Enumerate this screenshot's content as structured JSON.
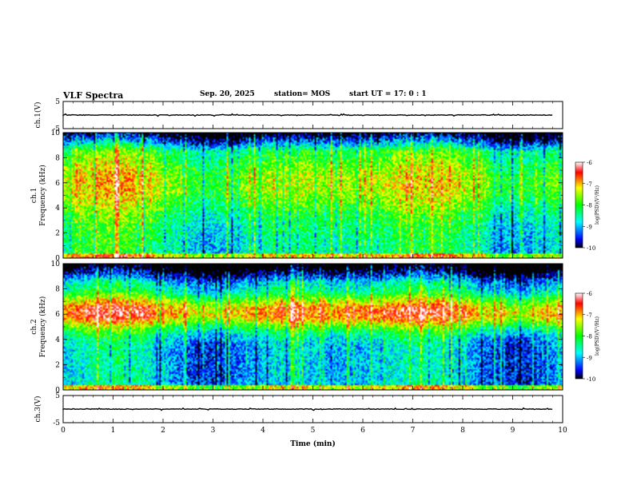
{
  "header": {
    "title": "VLF Spectra",
    "date": "Sep. 20, 2025",
    "station": "station= MOS",
    "start_ut": "start  UT =   17: 0  : 1"
  },
  "chart_data": [
    {
      "id": "ch1-waveform",
      "type": "line",
      "ylabel": "ch.1(V)",
      "ylim": [
        -5,
        5
      ],
      "yticks": [
        "5",
        "-5"
      ],
      "baseline_value": 0,
      "xlim": [
        0,
        10
      ]
    },
    {
      "id": "ch1-spectrogram",
      "type": "heatmap",
      "ylabel": "ch.1\nFrequency (kHz)",
      "ylim": [
        0,
        10
      ],
      "yticks": [
        "0",
        "2",
        "4",
        "6",
        "8",
        "10"
      ],
      "xlim": [
        0,
        10
      ],
      "colorbar": {
        "label": "log(PSD)(V²/Hz)",
        "range": [
          -10,
          -6
        ],
        "ticks": [
          "-6",
          "-7",
          "-8",
          "-9",
          "-10"
        ]
      }
    },
    {
      "id": "ch2-spectrogram",
      "type": "heatmap",
      "ylabel": "ch.2\nFrequency (kHz)",
      "ylim": [
        0,
        10
      ],
      "yticks": [
        "0",
        "2",
        "4",
        "6",
        "8",
        "10"
      ],
      "xlim": [
        0,
        10
      ],
      "colorbar": {
        "label": "log(PSD)(V²/Hz)",
        "range": [
          -10,
          -6
        ],
        "ticks": [
          "-6",
          "-7",
          "-8",
          "-9",
          "-10"
        ]
      }
    },
    {
      "id": "ch3-waveform",
      "type": "line",
      "ylabel": "ch.3(V)",
      "ylim": [
        -5,
        5
      ],
      "yticks": [
        "5",
        "-5"
      ],
      "baseline_value": 0,
      "xlim": [
        0,
        10
      ]
    }
  ],
  "xaxis": {
    "label": "Time  (min)",
    "ticks": [
      "0",
      "1",
      "2",
      "3",
      "4",
      "5",
      "6",
      "7",
      "8",
      "9",
      "10"
    ],
    "range": [
      0,
      10
    ]
  },
  "colors": {
    "frame": "#000000",
    "background": "#ffffff"
  }
}
